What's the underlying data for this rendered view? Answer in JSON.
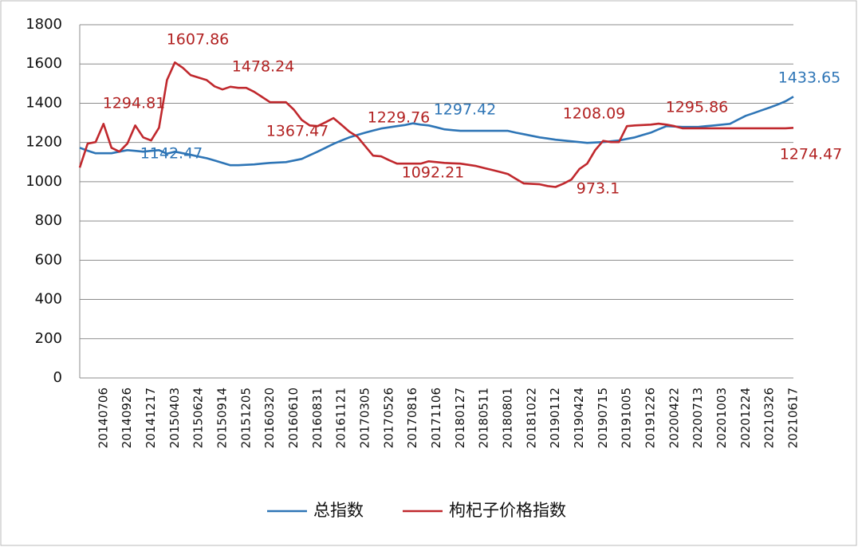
{
  "chart_data": {
    "type": "line",
    "categories": [
      null,
      null,
      null,
      "20140706",
      null,
      null,
      "20140926",
      null,
      null,
      "20141217",
      null,
      null,
      "20150403",
      null,
      null,
      "20150624",
      null,
      null,
      "20150914",
      null,
      null,
      "20151205",
      null,
      null,
      "20160320",
      null,
      null,
      "20160610",
      null,
      null,
      "20160831",
      null,
      null,
      "20161121",
      null,
      null,
      "20170305",
      null,
      null,
      "20170526",
      null,
      null,
      "20170816",
      null,
      null,
      "20171106",
      null,
      null,
      "20180127",
      null,
      null,
      "20180511",
      null,
      null,
      "20180801",
      null,
      null,
      "20181022",
      null,
      null,
      "20190112",
      null,
      null,
      "20190424",
      null,
      null,
      "20190715",
      null,
      null,
      "20191005",
      null,
      null,
      "20191226",
      null,
      null,
      "20200422",
      null,
      null,
      "20200713",
      null,
      null,
      "20201003",
      null,
      null,
      "20201224",
      null,
      null,
      "20210326",
      null,
      null,
      "20210617"
    ],
    "series": [
      {
        "name": "总指数",
        "color": "#2e75b6",
        "values": [
          1173,
          1158,
          1145,
          1145,
          1145,
          1153,
          1161,
          1157,
          1153,
          1157,
          1161,
          1142.47,
          1153,
          1145,
          1137,
          1128,
          1120,
          1108,
          1096,
          1084,
          1084,
          1086,
          1088,
          1092,
          1096,
          1098,
          1100,
          1108,
          1116,
          1135,
          1153,
          1173,
          1193,
          1210,
          1226,
          1238,
          1250,
          1261,
          1271,
          1277,
          1283,
          1289,
          1297.42,
          1291,
          1287,
          1277,
          1267,
          1263,
          1259,
          1259,
          1259,
          1259,
          1259,
          1259,
          1259,
          1250,
          1242,
          1234,
          1226,
          1220,
          1214,
          1210,
          1206,
          1202,
          1198,
          1200,
          1202,
          1206,
          1210,
          1218,
          1226,
          1238,
          1250,
          1267,
          1283,
          1281,
          1279,
          1279,
          1279,
          1283,
          1287,
          1291,
          1295,
          1316,
          1336,
          1350,
          1364,
          1378,
          1393,
          1410,
          1433.65
        ],
        "value_labels": [
          null,
          null,
          null,
          null,
          null,
          null,
          null,
          null,
          null,
          null,
          null,
          "1142.47",
          null,
          null,
          null,
          null,
          null,
          null,
          null,
          null,
          null,
          null,
          null,
          null,
          null,
          null,
          null,
          null,
          null,
          null,
          null,
          null,
          null,
          null,
          null,
          null,
          null,
          null,
          null,
          null,
          null,
          null,
          "1297.42",
          null,
          null,
          null,
          null,
          null,
          null,
          null,
          null,
          null,
          null,
          null,
          null,
          null,
          null,
          null,
          null,
          null,
          null,
          null,
          null,
          null,
          null,
          null,
          null,
          null,
          null,
          null,
          null,
          null,
          null,
          null,
          null,
          null,
          null,
          null,
          null,
          null,
          null,
          null,
          null,
          null,
          null,
          null,
          null,
          null,
          null,
          null,
          "1433.65"
        ]
      },
      {
        "name": "枸杞子价格指数",
        "color": "#c0282d",
        "values": [
          1072,
          1194,
          1202,
          1294.81,
          1173,
          1153,
          1194,
          1287,
          1226,
          1210,
          1275,
          1518,
          1607.86,
          1580,
          1543,
          1530,
          1518,
          1486,
          1470,
          1484,
          1478.24,
          1478,
          1458,
          1432,
          1405,
          1405,
          1405,
          1367.47,
          1315,
          1287,
          1283,
          1303,
          1324,
          1290,
          1255,
          1229.76,
          1181,
          1133,
          1129,
          1110,
          1092,
          1092,
          1092,
          1092.21,
          1104,
          1100,
          1096,
          1094,
          1092,
          1086,
          1080,
          1070,
          1060,
          1050,
          1039,
          1015,
          991,
          989,
          987,
          978,
          973.1,
          990,
          1011,
          1064,
          1092,
          1161,
          1208.09,
          1202,
          1202,
          1283,
          1287,
          1289,
          1291,
          1295.86,
          1291,
          1283,
          1272,
          1272,
          1272,
          1272,
          1272,
          1272,
          1272,
          1272,
          1272,
          1272,
          1272,
          1272,
          1272,
          1272,
          1274.47
        ],
        "value_labels": [
          null,
          null,
          null,
          "1294.81",
          null,
          null,
          null,
          null,
          null,
          null,
          null,
          null,
          "1607.86",
          null,
          null,
          null,
          null,
          null,
          null,
          null,
          "1478.24",
          null,
          null,
          null,
          null,
          null,
          null,
          "1367.47",
          null,
          null,
          null,
          null,
          null,
          null,
          null,
          "1229.76",
          null,
          null,
          null,
          null,
          null,
          null,
          null,
          "1092.21",
          null,
          null,
          null,
          null,
          null,
          null,
          null,
          null,
          null,
          null,
          null,
          null,
          null,
          null,
          null,
          null,
          "973.1",
          null,
          null,
          null,
          null,
          null,
          "1208.09",
          null,
          null,
          null,
          null,
          null,
          null,
          "1295.86",
          null,
          null,
          null,
          null,
          null,
          null,
          null,
          null,
          null,
          null,
          null,
          null,
          null,
          null,
          null,
          null,
          "1274.47"
        ]
      }
    ],
    "ylim": [
      0,
      1800
    ],
    "yticks": [
      0,
      200,
      400,
      600,
      800,
      1000,
      1200,
      1400,
      1600,
      1800
    ],
    "grid": true,
    "legend": "bottom"
  }
}
